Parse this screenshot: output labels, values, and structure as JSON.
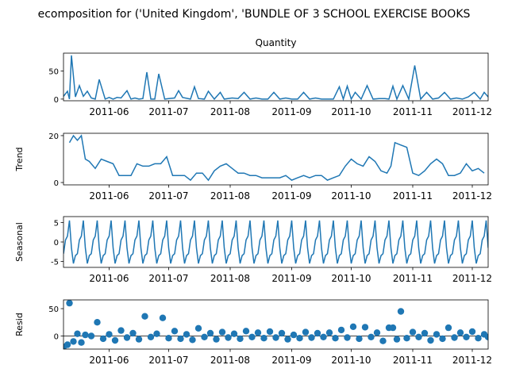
{
  "figure": {
    "suptitle": "ecomposition for ('United Kingdom', 'BUNDLE OF 3 SCHOOL EXERCISE BOOKS"
  },
  "chart_data": [
    {
      "type": "line",
      "title": "Quantity",
      "ylabel": "",
      "xlim": [
        "2011-05-09",
        "2011-12-09"
      ],
      "ylim": [
        -3,
        82
      ],
      "yticks": [
        0,
        50
      ],
      "xticks": [
        "2011-06",
        "2011-07",
        "2011-08",
        "2011-09",
        "2011-10",
        "2011-11",
        "2011-12"
      ],
      "x": [
        "2011-05-09",
        "2011-05-11",
        "2011-05-12",
        "2011-05-13",
        "2011-05-15",
        "2011-05-17",
        "2011-05-19",
        "2011-05-21",
        "2011-05-23",
        "2011-05-25",
        "2011-05-27",
        "2011-05-30",
        "2011-06-01",
        "2011-06-03",
        "2011-06-05",
        "2011-06-07",
        "2011-06-10",
        "2011-06-12",
        "2011-06-14",
        "2011-06-16",
        "2011-06-18",
        "2011-06-20",
        "2011-06-22",
        "2011-06-24",
        "2011-06-26",
        "2011-06-29",
        "2011-07-01",
        "2011-07-04",
        "2011-07-06",
        "2011-07-08",
        "2011-07-12",
        "2011-07-14",
        "2011-07-16",
        "2011-07-19",
        "2011-07-21",
        "2011-07-24",
        "2011-07-27",
        "2011-07-29",
        "2011-08-02",
        "2011-08-05",
        "2011-08-08",
        "2011-08-11",
        "2011-08-14",
        "2011-08-17",
        "2011-08-20",
        "2011-08-23",
        "2011-08-26",
        "2011-08-29",
        "2011-09-01",
        "2011-09-04",
        "2011-09-07",
        "2011-09-10",
        "2011-09-13",
        "2011-09-16",
        "2011-09-19",
        "2011-09-22",
        "2011-09-25",
        "2011-09-27",
        "2011-09-29",
        "2011-10-01",
        "2011-10-03",
        "2011-10-06",
        "2011-10-09",
        "2011-10-12",
        "2011-10-15",
        "2011-10-18",
        "2011-10-20",
        "2011-10-22",
        "2011-10-24",
        "2011-10-27",
        "2011-10-30",
        "2011-11-02",
        "2011-11-05",
        "2011-11-08",
        "2011-11-11",
        "2011-11-14",
        "2011-11-17",
        "2011-11-20",
        "2011-11-23",
        "2011-11-26",
        "2011-11-29",
        "2011-12-02",
        "2011-12-05",
        "2011-12-07",
        "2011-12-09"
      ],
      "values": [
        5,
        14,
        0,
        78,
        4,
        24,
        5,
        14,
        2,
        0,
        35,
        0,
        3,
        0,
        3,
        2,
        15,
        0,
        2,
        0,
        1,
        48,
        0,
        0,
        45,
        0,
        1,
        2,
        15,
        3,
        0,
        22,
        1,
        0,
        14,
        0,
        12,
        0,
        2,
        1,
        12,
        0,
        2,
        0,
        0,
        12,
        0,
        2,
        0,
        0,
        12,
        0,
        2,
        0,
        0,
        0,
        22,
        0,
        23,
        0,
        12,
        0,
        24,
        0,
        1,
        1,
        0,
        23,
        0,
        24,
        0,
        60,
        0,
        12,
        0,
        2,
        12,
        0,
        2,
        0,
        4,
        12,
        0,
        12,
        4
      ]
    },
    {
      "type": "line",
      "title": "",
      "ylabel": "Trend",
      "xlim": [
        "2011-05-09",
        "2011-12-09"
      ],
      "ylim": [
        -1,
        21
      ],
      "yticks": [
        0,
        20
      ],
      "xticks": [
        "2011-06",
        "2011-07",
        "2011-08",
        "2011-09",
        "2011-10",
        "2011-11",
        "2011-12"
      ],
      "x": [
        "2011-05-12",
        "2011-05-14",
        "2011-05-16",
        "2011-05-18",
        "2011-05-20",
        "2011-05-22",
        "2011-05-25",
        "2011-05-28",
        "2011-05-31",
        "2011-06-03",
        "2011-06-06",
        "2011-06-09",
        "2011-06-12",
        "2011-06-15",
        "2011-06-18",
        "2011-06-21",
        "2011-06-24",
        "2011-06-27",
        "2011-06-30",
        "2011-07-03",
        "2011-07-06",
        "2011-07-09",
        "2011-07-12",
        "2011-07-15",
        "2011-07-18",
        "2011-07-21",
        "2011-07-24",
        "2011-07-27",
        "2011-07-30",
        "2011-08-02",
        "2011-08-05",
        "2011-08-08",
        "2011-08-11",
        "2011-08-14",
        "2011-08-17",
        "2011-08-20",
        "2011-08-23",
        "2011-08-26",
        "2011-08-29",
        "2011-09-01",
        "2011-09-04",
        "2011-09-07",
        "2011-09-10",
        "2011-09-13",
        "2011-09-16",
        "2011-09-19",
        "2011-09-22",
        "2011-09-25",
        "2011-09-28",
        "2011-10-01",
        "2011-10-04",
        "2011-10-07",
        "2011-10-10",
        "2011-10-13",
        "2011-10-16",
        "2011-10-19",
        "2011-10-21",
        "2011-10-23",
        "2011-10-26",
        "2011-10-29",
        "2011-11-01",
        "2011-11-04",
        "2011-11-07",
        "2011-11-10",
        "2011-11-13",
        "2011-11-16",
        "2011-11-19",
        "2011-11-22",
        "2011-11-25",
        "2011-11-28",
        "2011-12-01",
        "2011-12-04",
        "2011-12-07"
      ],
      "values": [
        17,
        20,
        18,
        20,
        10,
        9,
        6,
        10,
        9,
        8,
        3,
        3,
        3,
        8,
        7,
        7,
        8,
        8,
        11,
        3,
        3,
        3,
        1,
        4,
        4,
        1,
        5,
        7,
        8,
        6,
        4,
        4,
        3,
        3,
        2,
        2,
        2,
        2,
        3,
        1,
        2,
        3,
        2,
        3,
        3,
        1,
        2,
        3,
        7,
        10,
        8,
        7,
        11,
        9,
        5,
        4,
        7,
        17,
        16,
        15,
        4,
        3,
        5,
        8,
        10,
        8,
        3,
        3,
        4,
        8,
        5,
        6,
        4
      ]
    },
    {
      "type": "line",
      "title": "",
      "ylabel": "Seasonal",
      "xlim": [
        "2011-05-09",
        "2011-12-09"
      ],
      "ylim": [
        -6.5,
        6.5
      ],
      "yticks": [
        -5,
        0,
        5
      ],
      "xticks": [
        "2011-06",
        "2011-07",
        "2011-08",
        "2011-09",
        "2011-10",
        "2011-11",
        "2011-12"
      ],
      "period_days": 7,
      "start": "2011-05-09",
      "end": "2011-12-09",
      "cycle_values": [
        -3.0,
        0.5,
        1.5,
        5.5,
        -1.5,
        -5.5,
        -3.5
      ]
    },
    {
      "type": "scatter",
      "title": "",
      "ylabel": "Resid",
      "xlim": [
        "2011-05-09",
        "2011-12-09"
      ],
      "ylim": [
        -24,
        66
      ],
      "yticks": [
        0,
        50
      ],
      "xticks": [
        "2011-06",
        "2011-07",
        "2011-08",
        "2011-09",
        "2011-10",
        "2011-11",
        "2011-12"
      ],
      "baseline": 0,
      "x": [
        "2011-05-09",
        "2011-05-11",
        "2011-05-12",
        "2011-05-14",
        "2011-05-16",
        "2011-05-18",
        "2011-05-20",
        "2011-05-23",
        "2011-05-26",
        "2011-05-29",
        "2011-06-01",
        "2011-06-04",
        "2011-06-07",
        "2011-06-10",
        "2011-06-13",
        "2011-06-16",
        "2011-06-19",
        "2011-06-22",
        "2011-06-25",
        "2011-06-28",
        "2011-07-01",
        "2011-07-04",
        "2011-07-07",
        "2011-07-10",
        "2011-07-13",
        "2011-07-16",
        "2011-07-19",
        "2011-07-22",
        "2011-07-25",
        "2011-07-28",
        "2011-07-31",
        "2011-08-03",
        "2011-08-06",
        "2011-08-09",
        "2011-08-12",
        "2011-08-15",
        "2011-08-18",
        "2011-08-21",
        "2011-08-24",
        "2011-08-27",
        "2011-08-30",
        "2011-09-02",
        "2011-09-05",
        "2011-09-08",
        "2011-09-11",
        "2011-09-14",
        "2011-09-17",
        "2011-09-20",
        "2011-09-23",
        "2011-09-26",
        "2011-09-29",
        "2011-10-02",
        "2011-10-05",
        "2011-10-08",
        "2011-10-11",
        "2011-10-14",
        "2011-10-17",
        "2011-10-20",
        "2011-10-22",
        "2011-10-24",
        "2011-10-26",
        "2011-10-29",
        "2011-11-01",
        "2011-11-04",
        "2011-11-07",
        "2011-11-10",
        "2011-11-13",
        "2011-11-16",
        "2011-11-19",
        "2011-11-22",
        "2011-11-25",
        "2011-11-28",
        "2011-12-01",
        "2011-12-04",
        "2011-12-07",
        "2011-12-09"
      ],
      "values": [
        -20,
        -16,
        60,
        -10,
        4,
        -12,
        2,
        0,
        25,
        -5,
        3,
        -8,
        10,
        -3,
        5,
        -6,
        36,
        -2,
        4,
        33,
        -4,
        9,
        -5,
        3,
        -7,
        14,
        -2,
        5,
        -6,
        7,
        -3,
        4,
        -5,
        9,
        -2,
        6,
        -4,
        8,
        -3,
        5,
        -6,
        2,
        -4,
        7,
        -3,
        5,
        -2,
        6,
        -4,
        11,
        -3,
        17,
        -5,
        16,
        -2,
        6,
        -9,
        15,
        15,
        -6,
        45,
        -4,
        7,
        -2,
        5,
        -8,
        3,
        -5,
        15,
        -3,
        6,
        -2,
        8,
        -4,
        3,
        -2
      ]
    }
  ]
}
